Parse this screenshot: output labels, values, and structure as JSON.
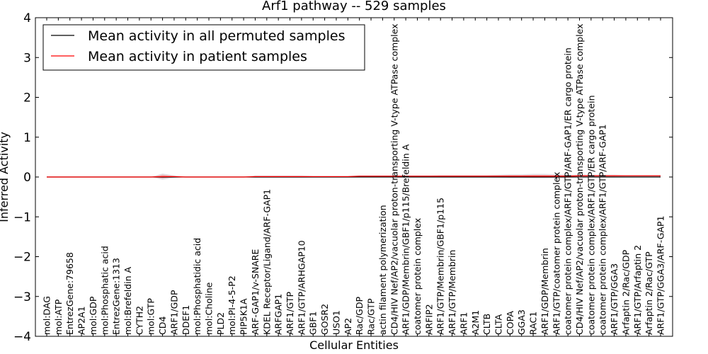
{
  "chart_data": {
    "type": "line",
    "title": "Arf1 pathway -- 529 samples",
    "xlabel": "Cellular Entities",
    "ylabel": "Inferred Activity",
    "ylim": [
      -4,
      4
    ],
    "yticks": [
      -4,
      -3,
      -2,
      -1,
      0,
      1,
      2,
      3,
      4
    ],
    "ytick_labels": [
      "−4",
      "−3",
      "−2",
      "−1",
      "0",
      "1",
      "2",
      "3",
      "4"
    ],
    "grid": false,
    "legend_position": "top-left",
    "categories": [
      "mol:DAG",
      "mol:ATP",
      "EntrezGene:79658",
      "AP2A1",
      "mol:GDP",
      "mol:Phosphatic acid",
      "EntrezGene:1313",
      "mol:Brefeldin A",
      "CYTH2",
      "mol:GTP",
      "CD4",
      "ARF1/GDP",
      "DDEF1",
      "mol:Phosphatidic acid",
      "mol:Choline",
      "PLD2",
      "mol:PI-4-5-P2",
      "PIP5K1A",
      "ARF-GAP1/v-SNARE",
      "KDEL Receptor/Ligand/ARF-GAP1",
      "ARFGAP1",
      "ARF1/GTP",
      "ARF1/GTP/ARHGAP10",
      "GBF1",
      "GOSR2",
      "USO1",
      "AP2",
      "Rac/GDP",
      "Rac/GTP",
      "actin filament polymerization",
      "CD4/HIV Nef/AP2/vacuolar proton-transporting V-type ATPase complex",
      "ARF1/GDP/Membrin/GBF1/p115/Brefeldin A",
      "coatomer protein complex",
      "ARFIP2",
      "ARF1/GTP/Membrin/GBF1/p115",
      "ARF1/GTP/Membrin",
      "ARF1",
      "A2M1",
      "CLTB",
      "CLTA",
      "COPA",
      "GGA3",
      "RAC1",
      "ARF1/GDP/Membrin",
      "ARF1/GTP/coatomer protein complex",
      "coatomer protein complex/ARF1/GTP/ARF-GAP1/ER cargo protein",
      "CD4/HIV Nef/AP2/vacuolar proton-transporting V-type ATPase complex",
      "coatomer protein complex/ARF1/GTP/ER cargo protein",
      "coatomer protein complex/ARF1/GTP/ARF-GAP1",
      "ARF1/GTP/GGA3",
      "Arfaptin 2/Rac/GDP",
      "ARF1/GTP/Arfaptin 2",
      "Arfaptin 2/Rac/GTP",
      "ARF1/GTP/GGA3/ARF-GAP1"
    ],
    "series": [
      {
        "name": "Mean activity in all permuted samples",
        "color": "#000000",
        "values": [
          0,
          0,
          0,
          0,
          0,
          0,
          0,
          0,
          0,
          0,
          0,
          0,
          0,
          0,
          0,
          0,
          0,
          0,
          0,
          0,
          0,
          0,
          0,
          0,
          0,
          0,
          0,
          0,
          0,
          0,
          0,
          0,
          0,
          0,
          0,
          0,
          0,
          0,
          0,
          0,
          0,
          0,
          0,
          0,
          0,
          0,
          0,
          0,
          0,
          0,
          0,
          0,
          0,
          0
        ]
      },
      {
        "name": "Mean activity in patient samples",
        "color": "#ff0000",
        "values": [
          0,
          0,
          0,
          0,
          0,
          0,
          0,
          0,
          0,
          0,
          0.01,
          0.01,
          0,
          0,
          0,
          0,
          0,
          0,
          0.01,
          0.01,
          0.01,
          0.01,
          0.01,
          0.01,
          0.01,
          0.01,
          0.01,
          0.02,
          0.02,
          0.02,
          0.02,
          0.02,
          0.02,
          0.02,
          0.02,
          0.02,
          0.02,
          0.02,
          0.02,
          0.02,
          0.02,
          0.02,
          0.02,
          0.02,
          0.02,
          0.02,
          0.03,
          0.03,
          0.03,
          0.03,
          0.03,
          0.03,
          0.03,
          0.03
        ]
      }
    ],
    "band_halfwidth": [
      0,
      0,
      0,
      0,
      0,
      0,
      0,
      0,
      0,
      0,
      0.08,
      0.03,
      0,
      0,
      0,
      0,
      0,
      0,
      0.03,
      0.03,
      0.03,
      0.03,
      0.03,
      0.02,
      0.02,
      0.02,
      0.02,
      0.02,
      0.02,
      0.02,
      0.02,
      0.02,
      0.02,
      0.02,
      0.03,
      0.03,
      0.03,
      0.03,
      0.03,
      0.04,
      0.05,
      0.05,
      0.06,
      0.06,
      0.05,
      0.04,
      0.03,
      0.03,
      0.03,
      0.03,
      0.02,
      0.02,
      0.02,
      0.02
    ]
  }
}
